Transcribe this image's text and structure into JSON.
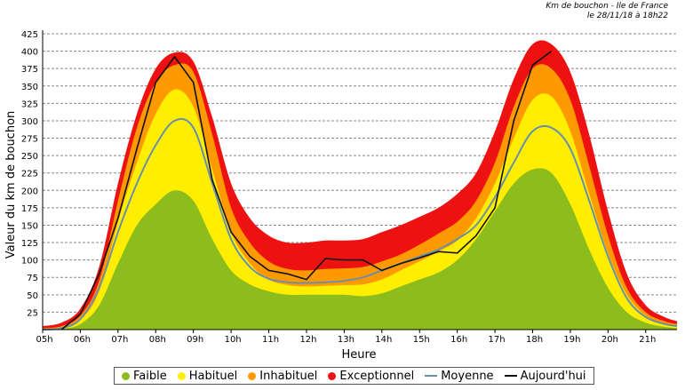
{
  "header": {
    "line1": "Km de bouchon - Ile de France",
    "line2": "le 28/11/18 à 18h22"
  },
  "colors": {
    "faible": "#8cbd1c",
    "habituel": "#ffee00",
    "inhabituel": "#ff9900",
    "exceptionnel": "#ee1111",
    "moyenne": "#6a8faa",
    "aujourdhui": "#111111"
  },
  "chart_data": {
    "type": "area",
    "title": "Km de bouchon - Ile de France",
    "xlabel": "Heure",
    "ylabel": "Valeur du  km de bouchon",
    "xlim": [
      5,
      21.83
    ],
    "ylim": [
      0,
      425
    ],
    "yticks": [
      25,
      50,
      75,
      100,
      125,
      150,
      175,
      200,
      225,
      250,
      275,
      300,
      325,
      350,
      375,
      400,
      425
    ],
    "xticks": [
      "05h",
      "06h",
      "07h",
      "08h",
      "09h",
      "10h",
      "11h",
      "12h",
      "13h",
      "14h",
      "15h",
      "16h",
      "17h",
      "18h",
      "19h",
      "20h",
      "21h"
    ],
    "grid": true,
    "legend_position": "bottom",
    "x": [
      5,
      5.5,
      6,
      6.5,
      7,
      7.5,
      8,
      8.5,
      9,
      9.5,
      10,
      10.5,
      11,
      11.5,
      12,
      12.5,
      13,
      13.5,
      14,
      14.5,
      15,
      15.5,
      16,
      16.5,
      17,
      17.5,
      18,
      18.5,
      19,
      19.5,
      20,
      20.5,
      21,
      21.5,
      21.83
    ],
    "series": [
      {
        "name": "Faible",
        "values": [
          0,
          1,
          8,
          35,
          95,
          150,
          180,
          200,
          185,
          130,
          85,
          65,
          55,
          50,
          50,
          50,
          50,
          48,
          52,
          62,
          72,
          82,
          100,
          130,
          170,
          210,
          230,
          225,
          180,
          115,
          60,
          25,
          10,
          4,
          2
        ]
      },
      {
        "name": "Habituel",
        "values": [
          0,
          2,
          14,
          55,
          155,
          240,
          310,
          345,
          320,
          230,
          140,
          95,
          72,
          64,
          62,
          63,
          64,
          65,
          72,
          85,
          98,
          112,
          128,
          160,
          210,
          275,
          330,
          335,
          285,
          195,
          110,
          50,
          20,
          8,
          5
        ]
      },
      {
        "name": "Inhabituel",
        "values": [
          2,
          5,
          20,
          70,
          185,
          290,
          355,
          380,
          370,
          280,
          175,
          125,
          98,
          87,
          85,
          87,
          88,
          90,
          98,
          108,
          122,
          138,
          155,
          185,
          240,
          320,
          375,
          375,
          330,
          235,
          135,
          60,
          25,
          12,
          8
        ]
      },
      {
        "name": "Exceptionnel",
        "values": [
          5,
          10,
          30,
          90,
          210,
          310,
          375,
          398,
          385,
          305,
          210,
          160,
          135,
          125,
          125,
          128,
          128,
          130,
          140,
          150,
          162,
          175,
          195,
          225,
          285,
          360,
          410,
          410,
          370,
          280,
          170,
          80,
          35,
          18,
          12
        ]
      },
      {
        "name": "Moyenne",
        "values": [
          0,
          2,
          15,
          60,
          140,
          210,
          265,
          300,
          290,
          210,
          130,
          90,
          73,
          68,
          67,
          68,
          70,
          75,
          85,
          95,
          105,
          115,
          130,
          150,
          190,
          240,
          285,
          290,
          260,
          185,
          105,
          45,
          18,
          8,
          5
        ]
      },
      {
        "name": "Aujourd'hui",
        "values": [
          null,
          0,
          22,
          80,
          160,
          260,
          355,
          392,
          355,
          215,
          140,
          105,
          85,
          80,
          72,
          102,
          100,
          100,
          85,
          95,
          103,
          112,
          110,
          135,
          175,
          300,
          380,
          400,
          null,
          null,
          null,
          null,
          null,
          null,
          null
        ]
      }
    ]
  },
  "legend": {
    "faible": "Faible",
    "habituel": "Habituel",
    "inhabituel": "Inhabituel",
    "exceptionnel": "Exceptionnel",
    "moyenne": "Moyenne",
    "aujourdhui": "Aujourd'hui"
  }
}
